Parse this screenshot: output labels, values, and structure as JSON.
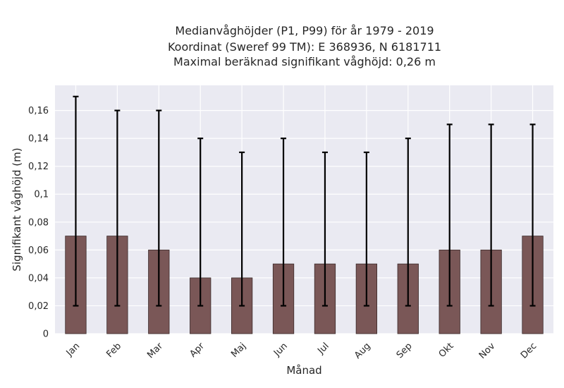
{
  "chart_data": {
    "type": "bar",
    "title_lines": [
      "Medianvåghöjder (P1, P99) för år 1979 - 2019",
      "Koordinat (Sweref 99 TM): E 368936, N 6181711",
      "Maximal beräknad signifikant våghöjd: 0,26 m"
    ],
    "xlabel": "Månad",
    "ylabel": "Signifikant våghöjd (m)",
    "categories": [
      "Jan",
      "Feb",
      "Mar",
      "Apr",
      "Maj",
      "Jun",
      "Jul",
      "Aug",
      "Sep",
      "Okt",
      "Nov",
      "Dec"
    ],
    "values": [
      0.07,
      0.07,
      0.06,
      0.04,
      0.04,
      0.05,
      0.05,
      0.05,
      0.05,
      0.06,
      0.06,
      0.07
    ],
    "error_low": [
      0.02,
      0.02,
      0.02,
      0.02,
      0.02,
      0.02,
      0.02,
      0.02,
      0.02,
      0.02,
      0.02,
      0.02
    ],
    "error_high": [
      0.17,
      0.16,
      0.16,
      0.14,
      0.13,
      0.14,
      0.13,
      0.13,
      0.14,
      0.15,
      0.15,
      0.15
    ],
    "ylim": [
      0,
      0.178
    ],
    "yticks": [
      0,
      0.02,
      0.04,
      0.06,
      0.08,
      0.1,
      0.12,
      0.14,
      0.16
    ],
    "ytick_labels": [
      "0",
      "0,02",
      "0,04",
      "0,06",
      "0,08",
      "0,1",
      "0,12",
      "0,14",
      "0,16"
    ],
    "grid": true,
    "colors": {
      "bar": "#7a5757",
      "bar_edge": "#3a2a2a",
      "errorbar": "#000000",
      "plot_bg": "#eaeaf2",
      "grid": "#ffffff",
      "text": "#262626"
    }
  }
}
